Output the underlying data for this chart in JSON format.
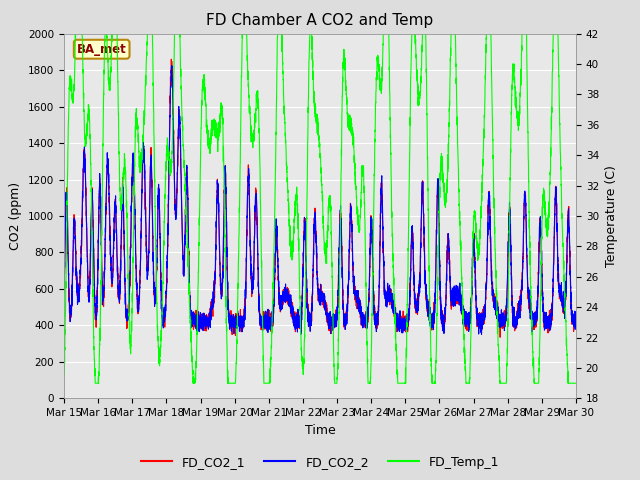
{
  "title": "FD Chamber A CO2 and Temp",
  "xlabel": "Time",
  "ylabel_left": "CO2 (ppm)",
  "ylabel_right": "Temperature (C)",
  "legend_label": "BA_met",
  "series_labels": [
    "FD_CO2_1",
    "FD_CO2_2",
    "FD_Temp_1"
  ],
  "colors": [
    "red",
    "blue",
    "#00ff00"
  ],
  "co2_ylim": [
    0,
    2000
  ],
  "temp_ylim": [
    18,
    42
  ],
  "co2_yticks": [
    0,
    200,
    400,
    600,
    800,
    1000,
    1200,
    1400,
    1600,
    1800,
    2000
  ],
  "temp_yticks": [
    18,
    20,
    22,
    24,
    26,
    28,
    30,
    32,
    34,
    36,
    38,
    40,
    42
  ],
  "x_tick_days": [
    15,
    16,
    17,
    18,
    19,
    20,
    21,
    22,
    23,
    24,
    25,
    26,
    27,
    28,
    29,
    30
  ],
  "x_tick_labels": [
    "Mar 15",
    "Mar 16",
    "Mar 17",
    "Mar 18",
    "Mar 19",
    "Mar 20",
    "Mar 21",
    "Mar 22",
    "Mar 23",
    "Mar 24",
    "Mar 25",
    "Mar 26",
    "Mar 27",
    "Mar 28",
    "Mar 29",
    "Mar 30"
  ],
  "fig_bg": "#dddddd",
  "plot_bg": "#e8e8e8",
  "grid_color": "#ffffff",
  "title_fontsize": 11,
  "axis_label_fontsize": 9,
  "tick_fontsize": 7.5,
  "lw": 0.8
}
